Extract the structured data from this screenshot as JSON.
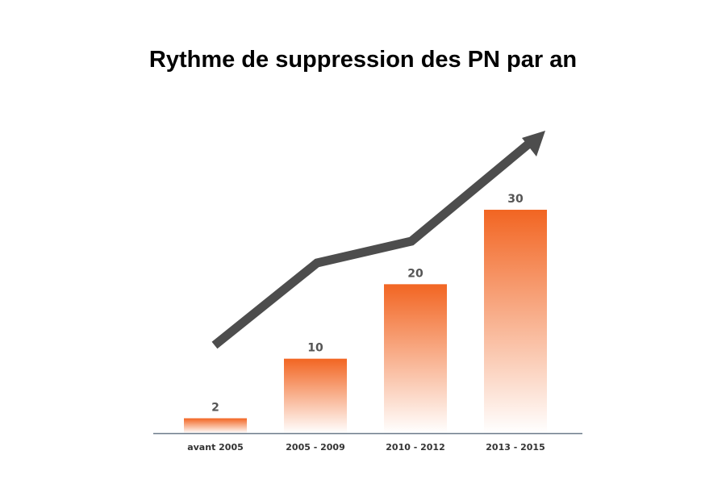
{
  "chart_data": {
    "type": "bar",
    "title": "Rythme de suppression des PN par an",
    "categories": [
      "avant 2005",
      "2005 - 2009",
      "2010 - 2012",
      "2013 - 2015"
    ],
    "values": [
      2,
      10,
      20,
      30
    ],
    "data_labels": [
      "2",
      "10",
      "20",
      "30"
    ],
    "xlabel": "",
    "ylabel": "",
    "ylim": [
      0,
      43
    ],
    "grid": false,
    "legend": "none",
    "trend_arrow": true,
    "colors": {
      "bar_top": "#f26522",
      "bar_bottom": "#ffffff",
      "arrow": "#4d4d4d",
      "axis": "#6b7a8a",
      "value_text": "#555555",
      "tick_text": "#333333"
    }
  }
}
